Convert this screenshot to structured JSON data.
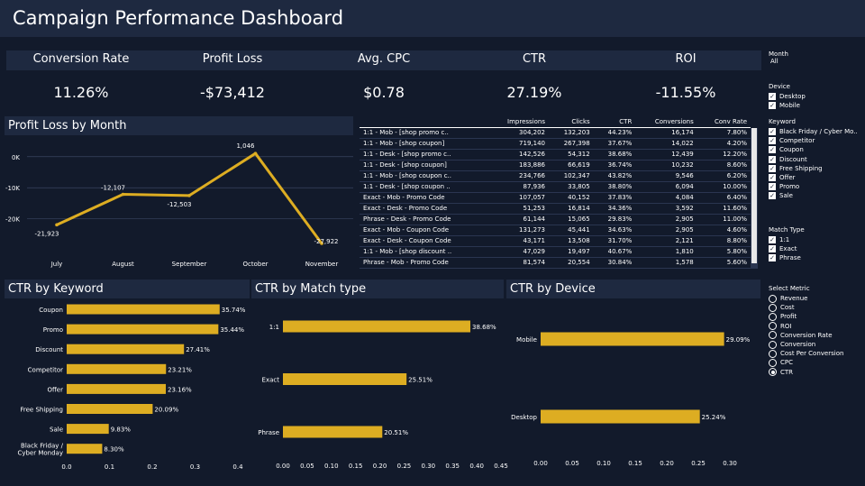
{
  "header": {
    "title": "Campaign Performance Dashboard"
  },
  "kpis": [
    {
      "label": "Conversion Rate",
      "value": "11.26%"
    },
    {
      "label": "Profit Loss",
      "value": "-$73,412"
    },
    {
      "label": "Avg. CPC",
      "value": "$0.78"
    },
    {
      "label": "CTR",
      "value": "27.19%"
    },
    {
      "label": "ROI",
      "value": "-11.55%"
    }
  ],
  "panels": {
    "profit_loss": "Profit Loss by Month",
    "ctr_keyword": "CTR by Keyword",
    "ctr_match": "CTR by Match type",
    "ctr_device": "CTR by Device"
  },
  "table": {
    "headers": [
      "",
      "Impressions",
      "Clicks",
      "CTR",
      "Conversions",
      "Conv Rate"
    ],
    "rows": [
      [
        "1:1 - Mob - [shop promo c..",
        "304,202",
        "132,203",
        "44.23%",
        "16,174",
        "7.80%"
      ],
      [
        "1:1 - Mob - [shop coupon]",
        "719,140",
        "267,398",
        "37.67%",
        "14,022",
        "4.20%"
      ],
      [
        "1:1 - Desk - [shop promo c..",
        "142,526",
        "54,312",
        "38.68%",
        "12,439",
        "12.20%"
      ],
      [
        "1:1 - Desk - [shop coupon]",
        "183,886",
        "66,619",
        "36.74%",
        "10,232",
        "8.60%"
      ],
      [
        "1:1 - Mob - [shop coupon c..",
        "234,766",
        "102,347",
        "43.82%",
        "9,546",
        "6.20%"
      ],
      [
        "1:1 - Desk - [shop coupon ..",
        "87,936",
        "33,805",
        "38.80%",
        "6,094",
        "10.00%"
      ],
      [
        "Exact - Mob - Promo Code",
        "107,057",
        "40,152",
        "37.83%",
        "4,084",
        "6.40%"
      ],
      [
        "Exact - Desk - Promo Code",
        "51,253",
        "16,814",
        "34.36%",
        "3,592",
        "11.60%"
      ],
      [
        "Phrase - Desk - Promo Code",
        "61,144",
        "15,065",
        "29.83%",
        "2,905",
        "11.00%"
      ],
      [
        "Exact - Mob - Coupon Code",
        "131,273",
        "45,441",
        "34.63%",
        "2,905",
        "4.60%"
      ],
      [
        "Exact - Desk - Coupon Code",
        "43,171",
        "13,508",
        "31.70%",
        "2,121",
        "8.80%"
      ],
      [
        "1:1 - Mob - [shop discount ..",
        "47,029",
        "19,497",
        "40.67%",
        "1,810",
        "5.80%"
      ],
      [
        "Phrase - Mob - Promo Code",
        "81,574",
        "20,554",
        "30.84%",
        "1,578",
        "5.60%"
      ]
    ]
  },
  "filters": {
    "month": {
      "title": "Month",
      "value": "All"
    },
    "device": {
      "title": "Device",
      "options": [
        "Desktop",
        "Mobile"
      ]
    },
    "keyword": {
      "title": "Keyword",
      "options": [
        "Black Friday / Cyber Mo..",
        "Competitor",
        "Coupon",
        "Discount",
        "Free Shipping",
        "Offer",
        "Promo",
        "Sale"
      ]
    },
    "match_type": {
      "title": "Match Type",
      "options": [
        "1:1",
        "Exact",
        "Phrase"
      ]
    },
    "metric": {
      "title": "Select Metric",
      "options": [
        "Revenue",
        "Cost",
        "Profit",
        "ROI",
        "Conversion Rate",
        "Conversion",
        "Cost Per Conversion",
        "CPC",
        "CTR"
      ],
      "selected": "CTR"
    }
  },
  "colors": {
    "background": "#121a2b",
    "panel": "#1e2940",
    "bar": "#ddad22",
    "line": "#ddad22"
  },
  "chart_data": [
    {
      "type": "line",
      "title": "Profit Loss by Month",
      "x": [
        "July",
        "August",
        "September",
        "October",
        "November"
      ],
      "values": [
        -21923,
        -12107,
        -12503,
        1046,
        -27922
      ],
      "data_labels": [
        "-21,923",
        "-12,107",
        "-12,503",
        "1,046",
        "-27,922"
      ],
      "yticks": [
        "0K",
        "-10K",
        "-20K"
      ],
      "ylim": [
        -28500,
        4000
      ]
    },
    {
      "type": "bar",
      "title": "CTR by Keyword",
      "categories": [
        "Coupon",
        "Promo",
        "Discount",
        "Competitor",
        "Offer",
        "Free Shipping",
        "Sale",
        "Black Friday / Cyber Monday"
      ],
      "values": [
        0.3574,
        0.3544,
        0.2741,
        0.2321,
        0.2316,
        0.2009,
        0.0983,
        0.083
      ],
      "data_labels": [
        "35.74%",
        "35.44%",
        "27.41%",
        "23.21%",
        "23.16%",
        "20.09%",
        "9.83%",
        "8.30%"
      ],
      "xticks": [
        "0.0",
        "0.1",
        "0.2",
        "0.3",
        "0.4"
      ],
      "xlim": [
        0,
        0.4
      ]
    },
    {
      "type": "bar",
      "title": "CTR by Match type",
      "categories": [
        "1:1",
        "Exact",
        "Phrase"
      ],
      "values": [
        0.3868,
        0.2551,
        0.2051
      ],
      "data_labels": [
        "38.68%",
        "25.51%",
        "20.51%"
      ],
      "xticks": [
        "0.00",
        "0.05",
        "0.10",
        "0.15",
        "0.20",
        "0.25",
        "0.30",
        "0.35",
        "0.40",
        "0.45"
      ],
      "xlim": [
        0,
        0.45
      ]
    },
    {
      "type": "bar",
      "title": "CTR by Device",
      "categories": [
        "Mobile",
        "Desktop"
      ],
      "values": [
        0.2909,
        0.2524
      ],
      "data_labels": [
        "29.09%",
        "25.24%"
      ],
      "xticks": [
        "0.00",
        "0.05",
        "0.10",
        "0.15",
        "0.20",
        "0.25",
        "0.30"
      ],
      "xlim": [
        0,
        0.3
      ]
    }
  ]
}
